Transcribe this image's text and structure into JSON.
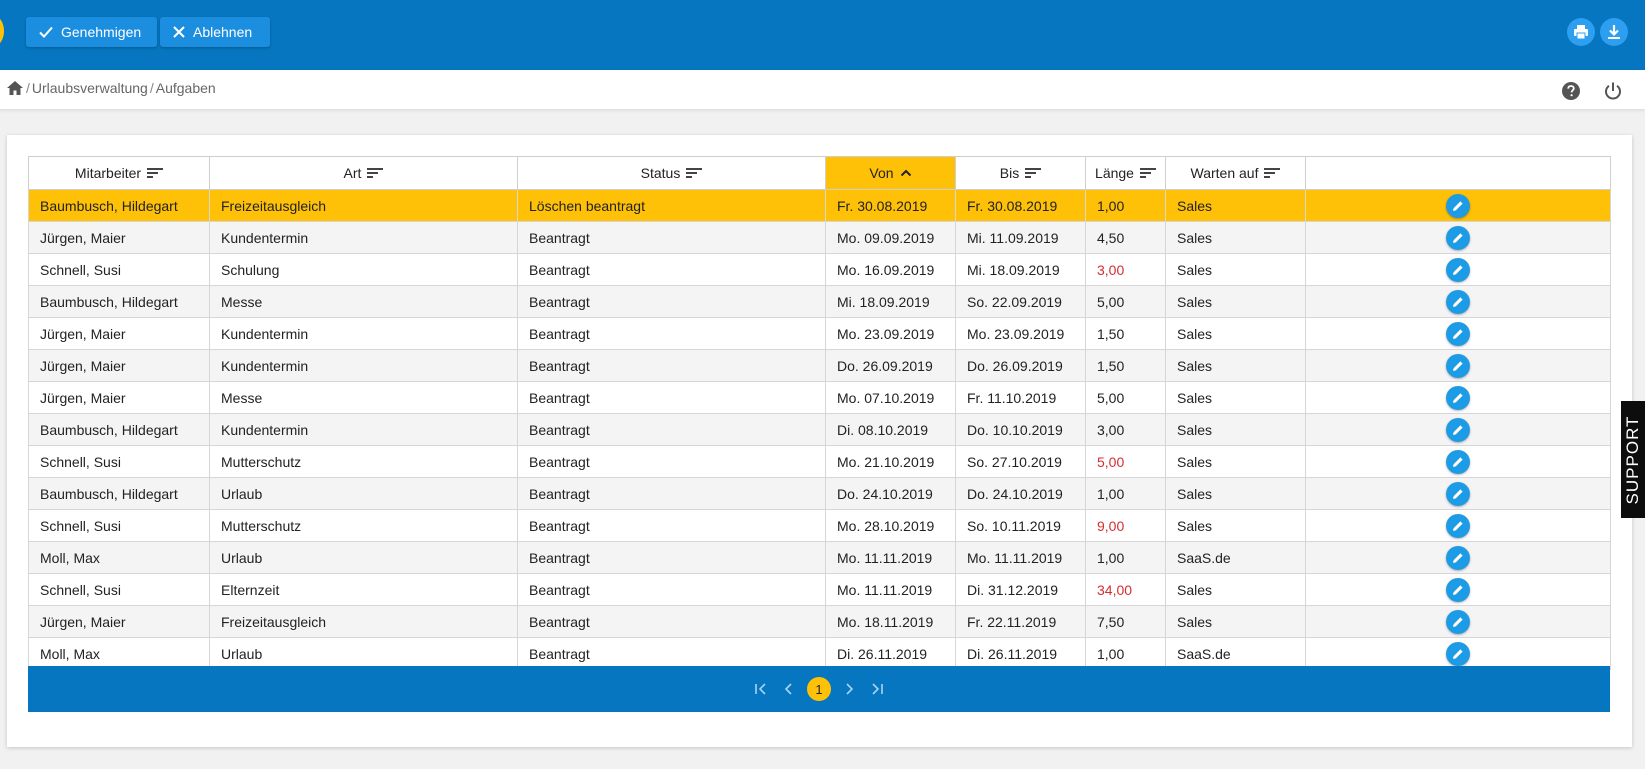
{
  "toolbar": {
    "approve_label": "Genehmigen",
    "reject_label": "Ablehnen"
  },
  "breadcrumb": {
    "sep1": "/",
    "item1": "Urlaubsverwaltung",
    "sep2": "/",
    "item2": "Aufgaben"
  },
  "table": {
    "columns": [
      "Mitarbeiter",
      "Art",
      "Status",
      "Von",
      "Bis",
      "Länge",
      "Warten auf"
    ],
    "sorted_column": "Von",
    "rows": [
      [
        "Baumbusch, Hildegart",
        "Freizeitausgleich",
        "Löschen beantragt",
        "Fr. 30.08.2019",
        "Fr. 30.08.2019",
        "1,00",
        "Sales"
      ],
      [
        "Jürgen, Maier",
        "Kundentermin",
        "Beantragt",
        "Mo. 09.09.2019",
        "Mi. 11.09.2019",
        "4,50",
        "Sales"
      ],
      [
        "Schnell, Susi",
        "Schulung",
        "Beantragt",
        "Mo. 16.09.2019",
        "Mi. 18.09.2019",
        "3,00",
        "Sales"
      ],
      [
        "Baumbusch, Hildegart",
        "Messe",
        "Beantragt",
        "Mi. 18.09.2019",
        "So. 22.09.2019",
        "5,00",
        "Sales"
      ],
      [
        "Jürgen, Maier",
        "Kundentermin",
        "Beantragt",
        "Mo. 23.09.2019",
        "Mo. 23.09.2019",
        "1,50",
        "Sales"
      ],
      [
        "Jürgen, Maier",
        "Kundentermin",
        "Beantragt",
        "Do. 26.09.2019",
        "Do. 26.09.2019",
        "1,50",
        "Sales"
      ],
      [
        "Jürgen, Maier",
        "Messe",
        "Beantragt",
        "Mo. 07.10.2019",
        "Fr. 11.10.2019",
        "5,00",
        "Sales"
      ],
      [
        "Baumbusch, Hildegart",
        "Kundentermin",
        "Beantragt",
        "Di. 08.10.2019",
        "Do. 10.10.2019",
        "3,00",
        "Sales"
      ],
      [
        "Schnell, Susi",
        "Mutterschutz",
        "Beantragt",
        "Mo. 21.10.2019",
        "So. 27.10.2019",
        "5,00",
        "Sales"
      ],
      [
        "Baumbusch, Hildegart",
        "Urlaub",
        "Beantragt",
        "Do. 24.10.2019",
        "Do. 24.10.2019",
        "1,00",
        "Sales"
      ],
      [
        "Schnell, Susi",
        "Mutterschutz",
        "Beantragt",
        "Mo. 28.10.2019",
        "So. 10.11.2019",
        "9,00",
        "Sales"
      ],
      [
        "Moll, Max",
        "Urlaub",
        "Beantragt",
        "Mo. 11.11.2019",
        "Mo. 11.11.2019",
        "1,00",
        "SaaS.de"
      ],
      [
        "Schnell, Susi",
        "Elternzeit",
        "Beantragt",
        "Mo. 11.11.2019",
        "Di. 31.12.2019",
        "34,00",
        "Sales"
      ],
      [
        "Jürgen, Maier",
        "Freizeitausgleich",
        "Beantragt",
        "Mo. 18.11.2019",
        "Fr. 22.11.2019",
        "7,50",
        "Sales"
      ],
      [
        "Moll, Max",
        "Urlaub",
        "Beantragt",
        "Di. 26.11.2019",
        "Di. 26.11.2019",
        "1,00",
        "SaaS.de"
      ]
    ],
    "selected_row": 0,
    "red_length_rows": [
      2,
      8,
      10,
      12
    ]
  },
  "pager": {
    "current_page": "1"
  },
  "support_label": "SUPPORT",
  "colors": {
    "brand_blue": "#0576bf",
    "accent_yellow": "#ffc107",
    "edit_blue": "#1e9be5",
    "warning_red": "#d32f2f"
  },
  "icons": {
    "approve": "check-icon",
    "reject": "x-icon",
    "print": "printer-icon",
    "download": "download-icon",
    "home": "home-icon",
    "help": "help-icon",
    "power": "power-icon",
    "sort": "sort-lines-icon",
    "sort_active": "chevron-up-icon",
    "edit": "pencil-icon"
  }
}
